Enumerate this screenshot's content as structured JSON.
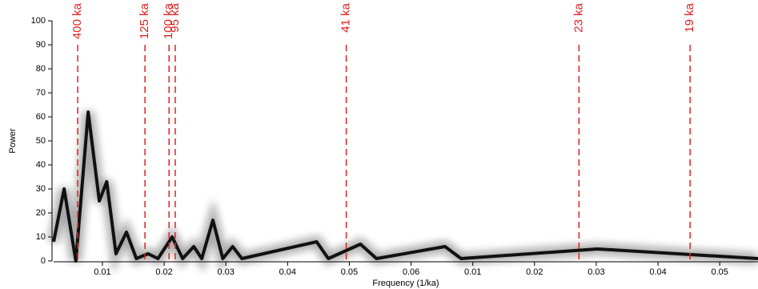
{
  "chart_data": {
    "type": "line",
    "xlabel": "Frequency (1/ka)",
    "ylabel": "Power",
    "x": [
      0.0021,
      0.0038,
      0.0057,
      0.0077,
      0.0095,
      0.0107,
      0.0122,
      0.0139,
      0.0155,
      0.0174,
      0.019,
      0.0213,
      0.023,
      0.0248,
      0.0261,
      0.0279,
      0.0295,
      0.0311,
      0.0326,
      0.0447,
      0.0466,
      0.0518,
      0.0544,
      0.0655,
      0.0681,
      0.0902,
      0.1162
    ],
    "series": [
      {
        "color": "#111111",
        "values": [
          8,
          30,
          0,
          62,
          25,
          33,
          3,
          12,
          1,
          3,
          1,
          10,
          1,
          6,
          1,
          17,
          1,
          6,
          1,
          8,
          1,
          7,
          1,
          6,
          1,
          5,
          1
        ]
      }
    ],
    "xlim": [
      0.0021,
      0.1162
    ],
    "xticks": [
      0.01,
      0.02,
      0.03,
      0.04,
      0.05,
      0.06,
      {
        "value": 0.07,
        "label": "0.01"
      },
      {
        "value": 0.08,
        "label": "0.02"
      },
      {
        "value": 0.09,
        "label": "0.03"
      },
      {
        "value": 0.1,
        "label": "0.04"
      },
      {
        "value": 0.11,
        "label": "0.05"
      }
    ],
    "ylim": [
      0,
      100
    ],
    "yticks": [
      0,
      10,
      20,
      30,
      40,
      50,
      60,
      70,
      80,
      90,
      100
    ],
    "annotation_color": "#e02020",
    "annotations": [
      {
        "x": 0.006,
        "label": "400 ka"
      },
      {
        "x": 0.0169,
        "label": "125 ka"
      },
      {
        "x": 0.0208,
        "label": "100 ka"
      },
      {
        "x": 0.0218,
        "label": "95 ka"
      },
      {
        "x": 0.0495,
        "label": "41 ka"
      },
      {
        "x": 0.0872,
        "label": "23 ka"
      },
      {
        "x": 0.1052,
        "label": "19 ka"
      }
    ]
  }
}
